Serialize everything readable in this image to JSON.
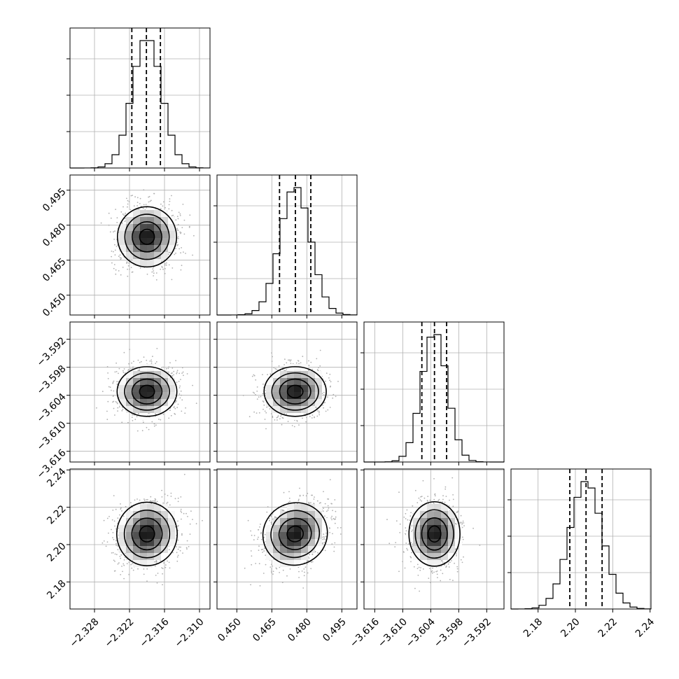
{
  "chart_data": {
    "type": "corner",
    "n_params": 4,
    "grid": true,
    "quantile_lines": "dashed",
    "colors": {
      "hist": "#000000",
      "contour": "#000000",
      "scatter": "#b0b0b0",
      "grid": "#b0b0b0"
    },
    "params": [
      {
        "range": [
          -2.3322,
          -2.3082
        ],
        "ticks": [
          -2.328,
          -2.322,
          -2.316,
          -2.31
        ],
        "tick_labels": [
          "−2.328",
          "−2.322",
          "−2.316",
          "−2.310"
        ],
        "mean": -2.319,
        "sd": 0.0025,
        "quantiles": [
          -2.3216,
          -2.3191,
          -2.3167
        ]
      },
      {
        "range": [
          0.4415,
          0.5015
        ],
        "ticks": [
          0.45,
          0.465,
          0.48,
          0.495
        ],
        "tick_labels": [
          "0.450",
          "0.465",
          "0.480",
          "0.495"
        ],
        "mean": 0.475,
        "sd": 0.0065,
        "quantiles": [
          0.4683,
          0.4751,
          0.4817
        ]
      },
      {
        "range": [
          -3.6183,
          -3.5883
        ],
        "ticks": [
          -3.616,
          -3.61,
          -3.604,
          -3.598,
          -3.592
        ],
        "tick_labels": [
          "−3.616",
          "−3.610",
          "−3.604",
          "−3.598",
          "−3.592"
        ],
        "mean": -3.6032,
        "sd": 0.0027,
        "quantiles": [
          -3.6059,
          -3.6032,
          -3.6006
        ]
      },
      {
        "range": [
          2.1655,
          2.2405
        ],
        "ticks": [
          2.18,
          2.2,
          2.22,
          2.24
        ],
        "tick_labels": [
          "2.18",
          "2.20",
          "2.22",
          "2.24"
        ],
        "mean": 2.2057,
        "sd": 0.0087,
        "quantiles": [
          2.197,
          2.2057,
          2.2143
        ]
      }
    ],
    "correlations": [
      [
        1,
        0.05,
        0.1,
        0.15
      ],
      [
        0.05,
        1,
        0.1,
        0.3
      ],
      [
        0.1,
        0.1,
        1,
        0.05
      ],
      [
        0.15,
        0.3,
        0.05,
        1
      ]
    ]
  }
}
